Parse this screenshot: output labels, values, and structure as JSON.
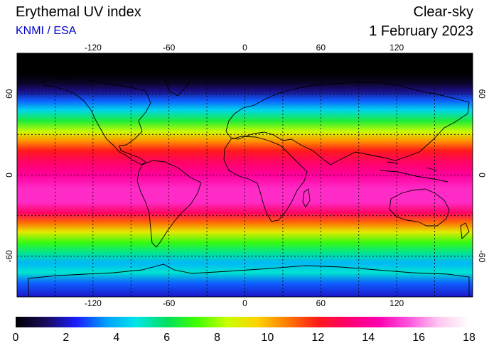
{
  "header": {
    "title": "Erythemal UV index",
    "credit": "KNMI / ESA",
    "condition": "Clear-sky",
    "date": "1 February 2023"
  },
  "map": {
    "projection": "equirectangular",
    "lon_range": [
      -180,
      180
    ],
    "lat_range": [
      -90,
      90
    ],
    "lon_ticks": [
      -120,
      -60,
      0,
      60,
      120
    ],
    "lat_ticks": [
      60,
      0,
      -60
    ],
    "lon_tick_labels": [
      "-120",
      "-60",
      "0",
      "60",
      "120"
    ],
    "lat_tick_labels": [
      "60",
      "0",
      "-60"
    ],
    "grid": true,
    "grid_lons": [
      -150,
      -120,
      -90,
      -60,
      -30,
      0,
      30,
      60,
      90,
      120,
      150
    ],
    "grid_lats": [
      60,
      30,
      0,
      -30,
      -60
    ],
    "grid_style": "dotted"
  },
  "colorbar": {
    "min": 0,
    "max": 18,
    "ticks": [
      "0",
      "2",
      "4",
      "6",
      "8",
      "10",
      "12",
      "14",
      "16",
      "18"
    ],
    "stops": [
      "#000000",
      "#1a0b5c",
      "#1c1cff",
      "#00a0ff",
      "#00e6e6",
      "#00e060",
      "#40ff00",
      "#c8ff00",
      "#ffd200",
      "#ff7a00",
      "#ff1a1a",
      "#ff0070",
      "#ff00b0",
      "#ff55dd",
      "#ffc8f0",
      "#ffffff"
    ]
  },
  "uv_bands": [
    {
      "lat": 90,
      "uv": 0
    },
    {
      "lat": 75,
      "uv": 0
    },
    {
      "lat": 68,
      "uv": 0.5
    },
    {
      "lat": 62,
      "uv": 1.5
    },
    {
      "lat": 55,
      "uv": 3
    },
    {
      "lat": 48,
      "uv": 4.5
    },
    {
      "lat": 40,
      "uv": 6.5
    },
    {
      "lat": 32,
      "uv": 8.5
    },
    {
      "lat": 25,
      "uv": 10.5
    },
    {
      "lat": 18,
      "uv": 12
    },
    {
      "lat": 10,
      "uv": 13
    },
    {
      "lat": 0,
      "uv": 14
    },
    {
      "lat": -10,
      "uv": 15
    },
    {
      "lat": -20,
      "uv": 15
    },
    {
      "lat": -28,
      "uv": 13
    },
    {
      "lat": -35,
      "uv": 11
    },
    {
      "lat": -42,
      "uv": 9
    },
    {
      "lat": -50,
      "uv": 7
    },
    {
      "lat": -58,
      "uv": 5.5
    },
    {
      "lat": -65,
      "uv": 4
    },
    {
      "lat": -72,
      "uv": 5
    },
    {
      "lat": -80,
      "uv": 3
    },
    {
      "lat": -90,
      "uv": 2
    }
  ]
}
